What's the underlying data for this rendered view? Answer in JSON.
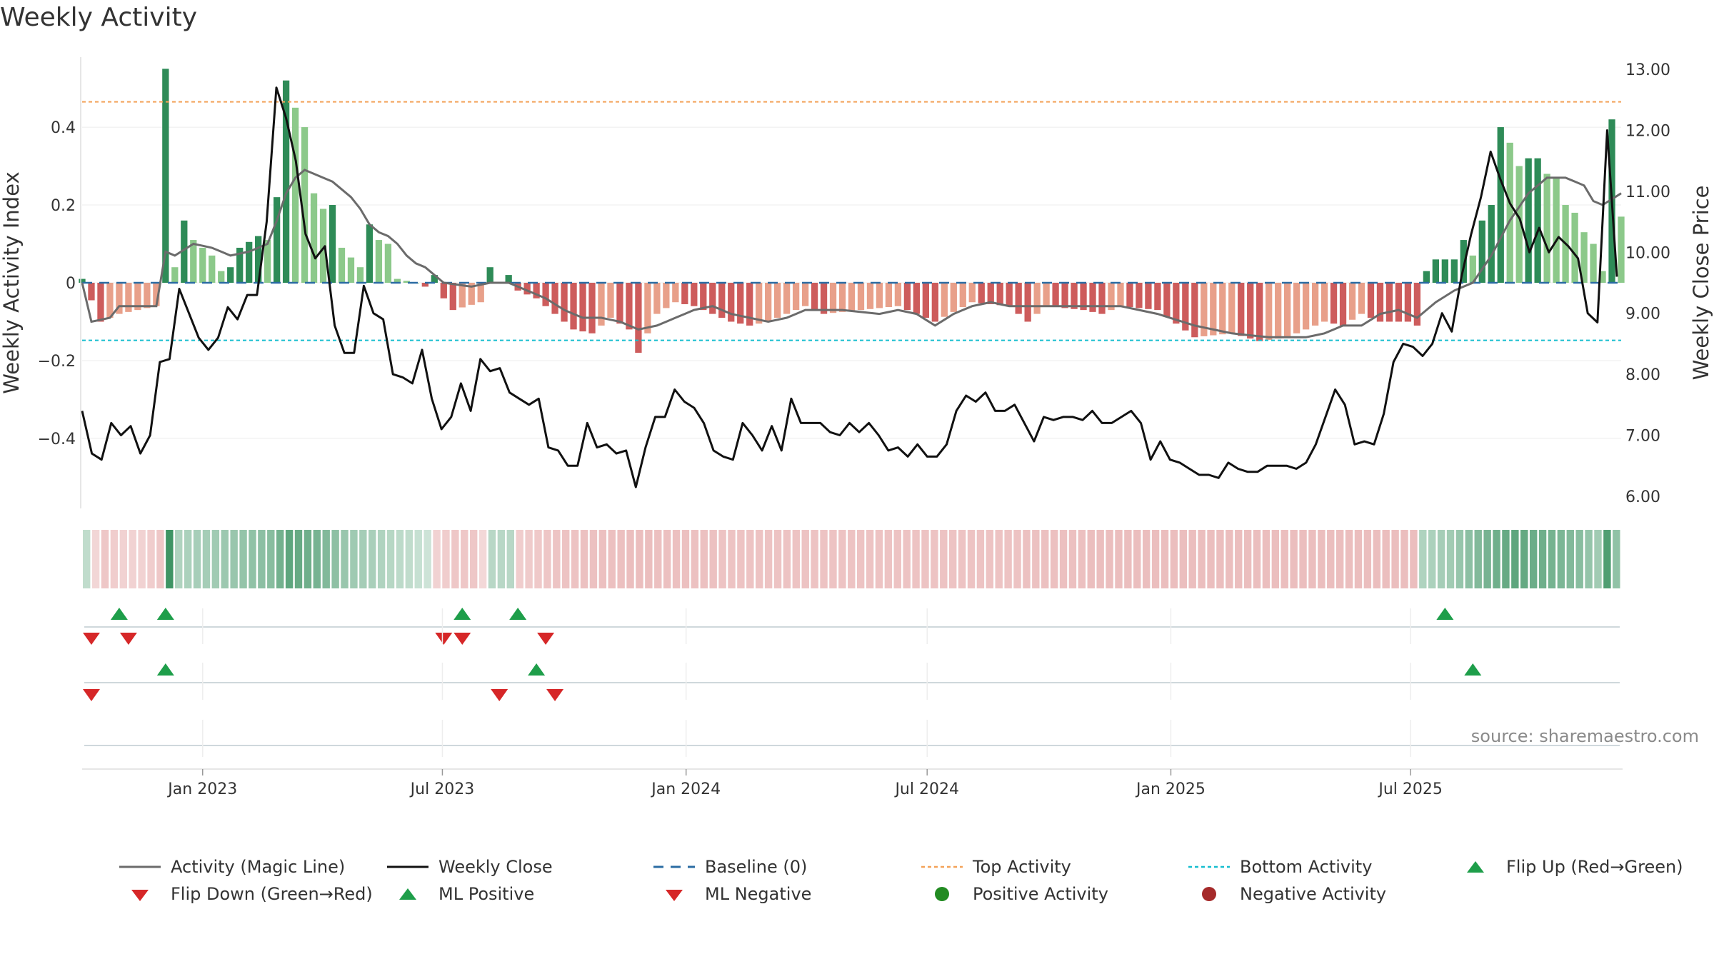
{
  "title": "Weekly Activity",
  "source": "source: sharemaestro.com",
  "colors": {
    "magic": "#6b6b6b",
    "close": "#111111",
    "baseline": "#2b6ca3",
    "top": "#f4a259",
    "bottom": "#17becf",
    "flipUp": "#1e9e4a",
    "flipDown": "#d62728",
    "posDark": "#2e8b57",
    "posLight": "#8cc98a",
    "negDark": "#cd5c5c",
    "negLight": "#e8a08a",
    "posDot": "#228b22",
    "negDot": "#a52a2a"
  },
  "chart_data": {
    "type": "bar",
    "start_date": "2022-10-02",
    "ylabel": "Weekly Activity Index",
    "y2label": "Weekly Close Price",
    "ylim": [
      -0.58,
      0.58
    ],
    "y2lim": [
      5.8,
      13.2
    ],
    "yticks": [
      -0.4,
      -0.2,
      0,
      0.2,
      0.4
    ],
    "yticklabels": [
      "−0.4",
      "−0.2",
      "0",
      "0.2",
      "0.4"
    ],
    "y2ticks": [
      6,
      7,
      8,
      9,
      10,
      11,
      12,
      13
    ],
    "y2ticklabels": [
      "6.00",
      "7.00",
      "8.00",
      "9.00",
      "10.00",
      "11.00",
      "12.00",
      "13.00"
    ],
    "xticks": [
      "2023-01-01",
      "2023-07-01",
      "2024-01-01",
      "2024-07-01",
      "2025-01-01",
      "2025-07-01"
    ],
    "xticklabels": [
      "Jan 2023",
      "Jul 2023",
      "Jan 2024",
      "Jul 2024",
      "Jan 2025",
      "Jul 2025"
    ],
    "top_activity": 0.465,
    "bottom_activity": -0.148,
    "activity_keys": [
      [
        0,
        0.01
      ],
      [
        2,
        -0.1
      ],
      [
        4,
        -0.08
      ],
      [
        6,
        -0.07
      ],
      [
        8,
        -0.06
      ],
      [
        9,
        0.55
      ],
      [
        10,
        0.04
      ],
      [
        11,
        0.16
      ],
      [
        12,
        0.11
      ],
      [
        14,
        0.07
      ],
      [
        15,
        0.03
      ],
      [
        16,
        0.04
      ],
      [
        17,
        0.09
      ],
      [
        19,
        0.12
      ],
      [
        20,
        0.11
      ],
      [
        21,
        0.22
      ],
      [
        22,
        0.52
      ],
      [
        23,
        0.45
      ],
      [
        24,
        0.4
      ],
      [
        25,
        0.23
      ],
      [
        26,
        0.19
      ],
      [
        27,
        0.2
      ],
      [
        28,
        0.09
      ],
      [
        30,
        0.04
      ],
      [
        31,
        0.15
      ],
      [
        32,
        0.11
      ],
      [
        33,
        0.1
      ],
      [
        34,
        0.01
      ],
      [
        36,
        0.0
      ],
      [
        37,
        -0.01
      ],
      [
        38,
        0.02
      ],
      [
        39,
        -0.04
      ],
      [
        40,
        -0.07
      ],
      [
        43,
        -0.05
      ],
      [
        44,
        0.04
      ],
      [
        45,
        0.0
      ],
      [
        46,
        0.02
      ],
      [
        47,
        -0.02
      ],
      [
        49,
        -0.04
      ],
      [
        51,
        -0.08
      ],
      [
        53,
        -0.12
      ],
      [
        55,
        -0.13
      ],
      [
        57,
        -0.09
      ],
      [
        59,
        -0.12
      ],
      [
        60,
        -0.18
      ],
      [
        62,
        -0.08
      ],
      [
        64,
        -0.05
      ],
      [
        66,
        -0.06
      ],
      [
        70,
        -0.1
      ],
      [
        72,
        -0.11
      ],
      [
        74,
        -0.1
      ],
      [
        78,
        -0.06
      ],
      [
        80,
        -0.08
      ],
      [
        84,
        -0.07
      ],
      [
        88,
        -0.06
      ],
      [
        92,
        -0.1
      ],
      [
        96,
        -0.05
      ],
      [
        100,
        -0.06
      ],
      [
        102,
        -0.1
      ],
      [
        104,
        -0.06
      ],
      [
        108,
        -0.07
      ],
      [
        110,
        -0.08
      ],
      [
        112,
        -0.06
      ],
      [
        116,
        -0.07
      ],
      [
        120,
        -0.14
      ],
      [
        124,
        -0.13
      ],
      [
        127,
        -0.15
      ],
      [
        130,
        -0.14
      ],
      [
        134,
        -0.1
      ],
      [
        136,
        -0.11
      ],
      [
        138,
        -0.08
      ],
      [
        140,
        -0.1
      ],
      [
        143,
        -0.1
      ],
      [
        144,
        -0.11
      ],
      [
        145,
        0.03
      ],
      [
        146,
        0.06
      ],
      [
        147,
        0.06
      ],
      [
        148,
        0.06
      ],
      [
        149,
        0.11
      ],
      [
        150,
        0.07
      ],
      [
        151,
        0.16
      ],
      [
        152,
        0.2
      ],
      [
        153,
        0.4
      ],
      [
        154,
        0.36
      ],
      [
        155,
        0.3
      ],
      [
        156,
        0.32
      ],
      [
        157,
        0.32
      ],
      [
        158,
        0.28
      ],
      [
        159,
        0.27
      ],
      [
        160,
        0.2
      ],
      [
        161,
        0.18
      ],
      [
        162,
        0.13
      ],
      [
        163,
        0.1
      ],
      [
        164,
        0.03
      ],
      [
        165,
        0.42
      ],
      [
        166,
        0.17
      ]
    ],
    "magic_keys": [
      [
        0,
        0.0
      ],
      [
        1,
        -0.1
      ],
      [
        3,
        -0.09
      ],
      [
        4,
        -0.06
      ],
      [
        6,
        -0.06
      ],
      [
        8,
        -0.06
      ],
      [
        9,
        0.08
      ],
      [
        10,
        0.07
      ],
      [
        12,
        0.1
      ],
      [
        14,
        0.09
      ],
      [
        15,
        0.08
      ],
      [
        16,
        0.07
      ],
      [
        18,
        0.08
      ],
      [
        19,
        0.09
      ],
      [
        20,
        0.1
      ],
      [
        21,
        0.16
      ],
      [
        22,
        0.23
      ],
      [
        23,
        0.27
      ],
      [
        24,
        0.29
      ],
      [
        26,
        0.27
      ],
      [
        27,
        0.26
      ],
      [
        29,
        0.22
      ],
      [
        30,
        0.19
      ],
      [
        31,
        0.15
      ],
      [
        32,
        0.13
      ],
      [
        33,
        0.12
      ],
      [
        34,
        0.1
      ],
      [
        35,
        0.07
      ],
      [
        36,
        0.05
      ],
      [
        37,
        0.04
      ],
      [
        38,
        0.02
      ],
      [
        39,
        0.0
      ],
      [
        42,
        -0.01
      ],
      [
        44,
        0.0
      ],
      [
        45,
        0.0
      ],
      [
        46,
        0.0
      ],
      [
        48,
        -0.02
      ],
      [
        50,
        -0.04
      ],
      [
        52,
        -0.07
      ],
      [
        54,
        -0.09
      ],
      [
        56,
        -0.09
      ],
      [
        58,
        -0.1
      ],
      [
        60,
        -0.12
      ],
      [
        62,
        -0.11
      ],
      [
        64,
        -0.09
      ],
      [
        66,
        -0.07
      ],
      [
        68,
        -0.06
      ],
      [
        70,
        -0.08
      ],
      [
        72,
        -0.09
      ],
      [
        74,
        -0.1
      ],
      [
        76,
        -0.09
      ],
      [
        78,
        -0.07
      ],
      [
        82,
        -0.07
      ],
      [
        86,
        -0.08
      ],
      [
        88,
        -0.07
      ],
      [
        90,
        -0.08
      ],
      [
        92,
        -0.11
      ],
      [
        94,
        -0.08
      ],
      [
        96,
        -0.06
      ],
      [
        98,
        -0.05
      ],
      [
        100,
        -0.06
      ],
      [
        104,
        -0.06
      ],
      [
        108,
        -0.06
      ],
      [
        112,
        -0.06
      ],
      [
        116,
        -0.08
      ],
      [
        120,
        -0.11
      ],
      [
        124,
        -0.13
      ],
      [
        128,
        -0.14
      ],
      [
        132,
        -0.14
      ],
      [
        134,
        -0.13
      ],
      [
        136,
        -0.11
      ],
      [
        138,
        -0.11
      ],
      [
        140,
        -0.08
      ],
      [
        142,
        -0.07
      ],
      [
        144,
        -0.09
      ],
      [
        146,
        -0.05
      ],
      [
        148,
        -0.02
      ],
      [
        150,
        0.0
      ],
      [
        152,
        0.07
      ],
      [
        154,
        0.16
      ],
      [
        156,
        0.23
      ],
      [
        158,
        0.27
      ],
      [
        160,
        0.27
      ],
      [
        162,
        0.25
      ],
      [
        163,
        0.21
      ],
      [
        164,
        0.2
      ],
      [
        166,
        0.23
      ]
    ],
    "close_keys": [
      [
        0,
        7.4
      ],
      [
        1,
        6.7
      ],
      [
        2,
        6.6
      ],
      [
        3,
        7.2
      ],
      [
        4,
        7.0
      ],
      [
        5,
        7.15
      ],
      [
        6,
        6.7
      ],
      [
        7,
        7.0
      ],
      [
        8,
        8.2
      ],
      [
        9,
        8.25
      ],
      [
        10,
        9.4
      ],
      [
        11,
        9.0
      ],
      [
        12,
        8.6
      ],
      [
        13,
        8.4
      ],
      [
        14,
        8.6
      ],
      [
        15,
        9.1
      ],
      [
        16,
        8.9
      ],
      [
        17,
        9.3
      ],
      [
        18,
        9.3
      ],
      [
        19,
        10.5
      ],
      [
        20,
        12.7
      ],
      [
        21,
        12.2
      ],
      [
        22,
        11.5
      ],
      [
        23,
        10.3
      ],
      [
        24,
        9.9
      ],
      [
        25,
        10.1
      ],
      [
        26,
        8.8
      ],
      [
        27,
        8.35
      ],
      [
        28,
        8.35
      ],
      [
        29,
        9.45
      ],
      [
        30,
        9.0
      ],
      [
        31,
        8.9
      ],
      [
        32,
        8.0
      ],
      [
        33,
        7.95
      ],
      [
        34,
        7.85
      ],
      [
        35,
        8.4
      ],
      [
        36,
        7.6
      ],
      [
        37,
        7.1
      ],
      [
        38,
        7.3
      ],
      [
        39,
        7.85
      ],
      [
        40,
        7.4
      ],
      [
        41,
        8.25
      ],
      [
        42,
        8.05
      ],
      [
        43,
        8.1
      ],
      [
        44,
        7.7
      ],
      [
        45,
        7.6
      ],
      [
        46,
        7.5
      ],
      [
        47,
        7.6
      ],
      [
        48,
        6.8
      ],
      [
        49,
        6.75
      ],
      [
        50,
        6.5
      ],
      [
        51,
        6.5
      ],
      [
        52,
        7.2
      ],
      [
        53,
        6.8
      ],
      [
        54,
        6.85
      ],
      [
        55,
        6.7
      ],
      [
        56,
        6.75
      ],
      [
        57,
        6.15
      ],
      [
        58,
        6.8
      ],
      [
        59,
        7.3
      ],
      [
        60,
        7.3
      ],
      [
        61,
        7.75
      ],
      [
        62,
        7.55
      ],
      [
        63,
        7.45
      ],
      [
        64,
        7.2
      ],
      [
        65,
        6.75
      ],
      [
        66,
        6.65
      ],
      [
        67,
        6.6
      ],
      [
        68,
        7.2
      ],
      [
        69,
        7.0
      ],
      [
        70,
        6.75
      ],
      [
        71,
        7.15
      ],
      [
        72,
        6.75
      ],
      [
        73,
        7.6
      ],
      [
        74,
        7.2
      ],
      [
        75,
        7.2
      ],
      [
        76,
        7.2
      ],
      [
        77,
        7.05
      ],
      [
        78,
        7.0
      ],
      [
        79,
        7.2
      ],
      [
        80,
        7.05
      ],
      [
        81,
        7.2
      ],
      [
        82,
        7.0
      ],
      [
        83,
        6.75
      ],
      [
        84,
        6.8
      ],
      [
        85,
        6.65
      ],
      [
        86,
        6.85
      ],
      [
        87,
        6.65
      ],
      [
        88,
        6.65
      ],
      [
        89,
        6.85
      ],
      [
        90,
        7.4
      ],
      [
        91,
        7.65
      ],
      [
        92,
        7.55
      ],
      [
        93,
        7.7
      ],
      [
        94,
        7.4
      ],
      [
        95,
        7.4
      ],
      [
        96,
        7.5
      ],
      [
        97,
        7.2
      ],
      [
        98,
        6.9
      ],
      [
        99,
        7.3
      ],
      [
        100,
        7.25
      ],
      [
        101,
        7.3
      ],
      [
        102,
        7.3
      ],
      [
        103,
        7.25
      ],
      [
        104,
        7.4
      ],
      [
        105,
        7.2
      ],
      [
        106,
        7.2
      ],
      [
        107,
        7.3
      ],
      [
        108,
        7.4
      ],
      [
        109,
        7.2
      ],
      [
        110,
        6.6
      ],
      [
        111,
        6.9
      ],
      [
        112,
        6.6
      ],
      [
        113,
        6.55
      ],
      [
        114,
        6.45
      ],
      [
        115,
        6.35
      ],
      [
        116,
        6.35
      ],
      [
        117,
        6.3
      ],
      [
        118,
        6.55
      ],
      [
        119,
        6.45
      ],
      [
        120,
        6.4
      ],
      [
        121,
        6.4
      ],
      [
        122,
        6.5
      ],
      [
        123,
        6.5
      ],
      [
        124,
        6.5
      ],
      [
        125,
        6.45
      ],
      [
        126,
        6.55
      ],
      [
        127,
        6.85
      ],
      [
        128,
        7.3
      ],
      [
        129,
        7.75
      ],
      [
        130,
        7.5
      ],
      [
        131,
        6.85
      ],
      [
        132,
        6.9
      ],
      [
        133,
        6.85
      ],
      [
        134,
        7.35
      ],
      [
        135,
        8.2
      ],
      [
        136,
        8.5
      ],
      [
        137,
        8.45
      ],
      [
        138,
        8.3
      ],
      [
        139,
        8.5
      ],
      [
        140,
        9.0
      ],
      [
        141,
        8.7
      ],
      [
        142,
        9.6
      ],
      [
        143,
        10.3
      ],
      [
        144,
        10.9
      ],
      [
        145,
        11.65
      ],
      [
        146,
        11.2
      ],
      [
        147,
        10.8
      ],
      [
        148,
        10.55
      ],
      [
        149,
        10.0
      ],
      [
        150,
        10.4
      ],
      [
        151,
        10.0
      ],
      [
        152,
        10.25
      ],
      [
        153,
        10.1
      ],
      [
        154,
        9.9
      ],
      [
        155,
        9.0
      ],
      [
        156,
        8.85
      ],
      [
        157,
        12.0
      ],
      [
        158,
        9.6
      ]
    ],
    "strength_keys": [
      [
        0,
        0.1
      ],
      [
        2,
        -0.2
      ],
      [
        4,
        -0.1
      ],
      [
        6,
        -0.1
      ],
      [
        8,
        -0.2
      ],
      [
        9,
        0.9
      ],
      [
        10,
        0.2
      ],
      [
        14,
        0.3
      ],
      [
        20,
        0.45
      ],
      [
        22,
        0.7
      ],
      [
        25,
        0.55
      ],
      [
        28,
        0.35
      ],
      [
        32,
        0.2
      ],
      [
        35,
        0.1
      ],
      [
        37,
        0.02
      ],
      [
        38,
        -0.1
      ],
      [
        40,
        -0.2
      ],
      [
        42,
        -0.2
      ],
      [
        44,
        0.15
      ],
      [
        46,
        0.15
      ],
      [
        47,
        -0.15
      ],
      [
        52,
        -0.25
      ],
      [
        60,
        -0.3
      ],
      [
        70,
        -0.25
      ],
      [
        80,
        -0.25
      ],
      [
        90,
        -0.25
      ],
      [
        100,
        -0.25
      ],
      [
        110,
        -0.3
      ],
      [
        120,
        -0.3
      ],
      [
        130,
        -0.3
      ],
      [
        140,
        -0.3
      ],
      [
        144,
        -0.3
      ],
      [
        145,
        0.2
      ],
      [
        148,
        0.3
      ],
      [
        152,
        0.55
      ],
      [
        155,
        0.7
      ],
      [
        158,
        0.6
      ],
      [
        162,
        0.45
      ],
      [
        164,
        0.3
      ],
      [
        165,
        0.8
      ],
      [
        166,
        0.4
      ]
    ],
    "markers": {
      "flip_up": [
        4,
        9,
        41,
        47,
        147
      ],
      "flip_down": [
        1,
        5,
        39,
        41,
        50
      ],
      "ml_positive": [
        9,
        49,
        150
      ],
      "ml_negative": [
        1,
        45,
        51
      ]
    },
    "legend": [
      "Activity (Magic Line)",
      "Weekly Close",
      "Baseline (0)",
      "Top Activity",
      "Bottom Activity",
      "Flip Up (Red→Green)",
      "Flip Down (Green→Red)",
      "ML Positive",
      "ML Negative",
      "Positive Activity",
      "Negative Activity"
    ]
  }
}
